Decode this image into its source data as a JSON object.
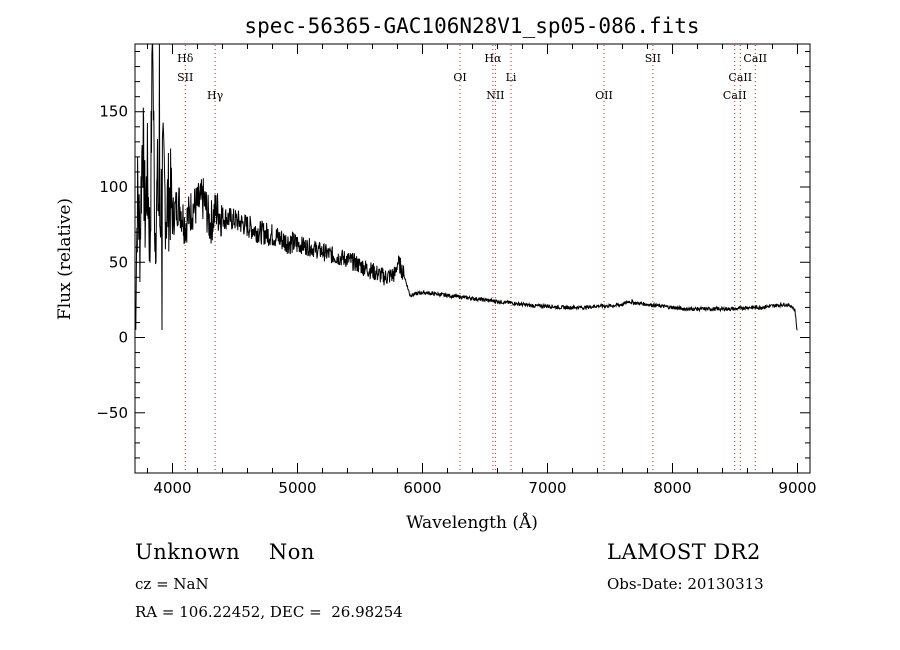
{
  "chart_data": {
    "type": "line",
    "title": "spec-56365-GAC106N28V1_sp05-086.fits",
    "xlabel": "Wavelength (Å)",
    "ylabel": "Flux (relative)",
    "xlim": [
      3700,
      9100
    ],
    "ylim": [
      -90,
      195
    ],
    "x_ticks": [
      4000,
      5000,
      6000,
      7000,
      8000,
      9000
    ],
    "x_tick_labels": [
      "4000",
      "5000",
      "6000",
      "7000",
      "8000",
      "9000"
    ],
    "y_ticks": [
      -50,
      0,
      50,
      100,
      150
    ],
    "y_tick_labels": [
      "−50",
      "0",
      "50",
      "100",
      "150"
    ],
    "grid": false,
    "series": [
      {
        "color": "#000000",
        "x": [
          3700,
          3720,
          3740,
          3760,
          3780,
          3800,
          3820,
          3840,
          3860,
          3880,
          3900,
          3920,
          3950,
          3980,
          4000,
          4050,
          4100,
          4150,
          4200,
          4250,
          4300,
          4350,
          4400,
          4500,
          4600,
          4700,
          4800,
          4900,
          5000,
          5100,
          5200,
          5300,
          5400,
          5500,
          5600,
          5700,
          5780,
          5800,
          5820,
          5850,
          5900,
          6000,
          6100,
          6200,
          6300,
          6400,
          6500,
          6600,
          6700,
          6800,
          6900,
          7000,
          7100,
          7200,
          7300,
          7400,
          7500,
          7600,
          7650,
          7700,
          7800,
          7900,
          8000,
          8100,
          8200,
          8300,
          8400,
          8500,
          8600,
          8700,
          8800,
          8900,
          8950,
          8980,
          9000
        ],
        "y": [
          5,
          95,
          65,
          140,
          80,
          110,
          60,
          195,
          70,
          100,
          75,
          115,
          85,
          95,
          80,
          90,
          75,
          85,
          88,
          92,
          75,
          85,
          80,
          78,
          74,
          70,
          68,
          64,
          62,
          60,
          57,
          54,
          52,
          48,
          44,
          40,
          42,
          50,
          48,
          42,
          28,
          30,
          29,
          28,
          27,
          26,
          25,
          24,
          23,
          22,
          21,
          21,
          20,
          20,
          20,
          21,
          21,
          22,
          24,
          23,
          22,
          21,
          20,
          19,
          19,
          19,
          19,
          19,
          20,
          20,
          21,
          22,
          21,
          18,
          2
        ]
      }
    ],
    "lines": [
      {
        "wavelength": 4102,
        "labels": [
          "Hδ",
          "SII"
        ]
      },
      {
        "wavelength": 4341,
        "labels": [
          "Hγ"
        ]
      },
      {
        "wavelength": 6300,
        "labels": [
          "OI"
        ]
      },
      {
        "wavelength": 6563,
        "labels": [
          "Hα"
        ]
      },
      {
        "wavelength": 6583,
        "labels": [
          "NII"
        ]
      },
      {
        "wavelength": 6708,
        "labels": [
          "Li"
        ]
      },
      {
        "wavelength": 7452,
        "labels": [
          "OII"
        ]
      },
      {
        "wavelength": 7843,
        "labels": [
          "SII"
        ]
      },
      {
        "wavelength": 8498,
        "labels": [
          "CaII"
        ]
      },
      {
        "wavelength": 8542,
        "labels": [
          "CaII"
        ]
      },
      {
        "wavelength": 8662,
        "labels": [
          "CaII"
        ]
      }
    ],
    "line_color": "#d22020"
  },
  "footer": {
    "classification": "Unknown    Non",
    "survey": "LAMOST DR2",
    "cz": "cz = NaN",
    "obs_date": "Obs-Date: 20130313",
    "radec": "RA = 106.22452, DEC =  26.98254"
  }
}
